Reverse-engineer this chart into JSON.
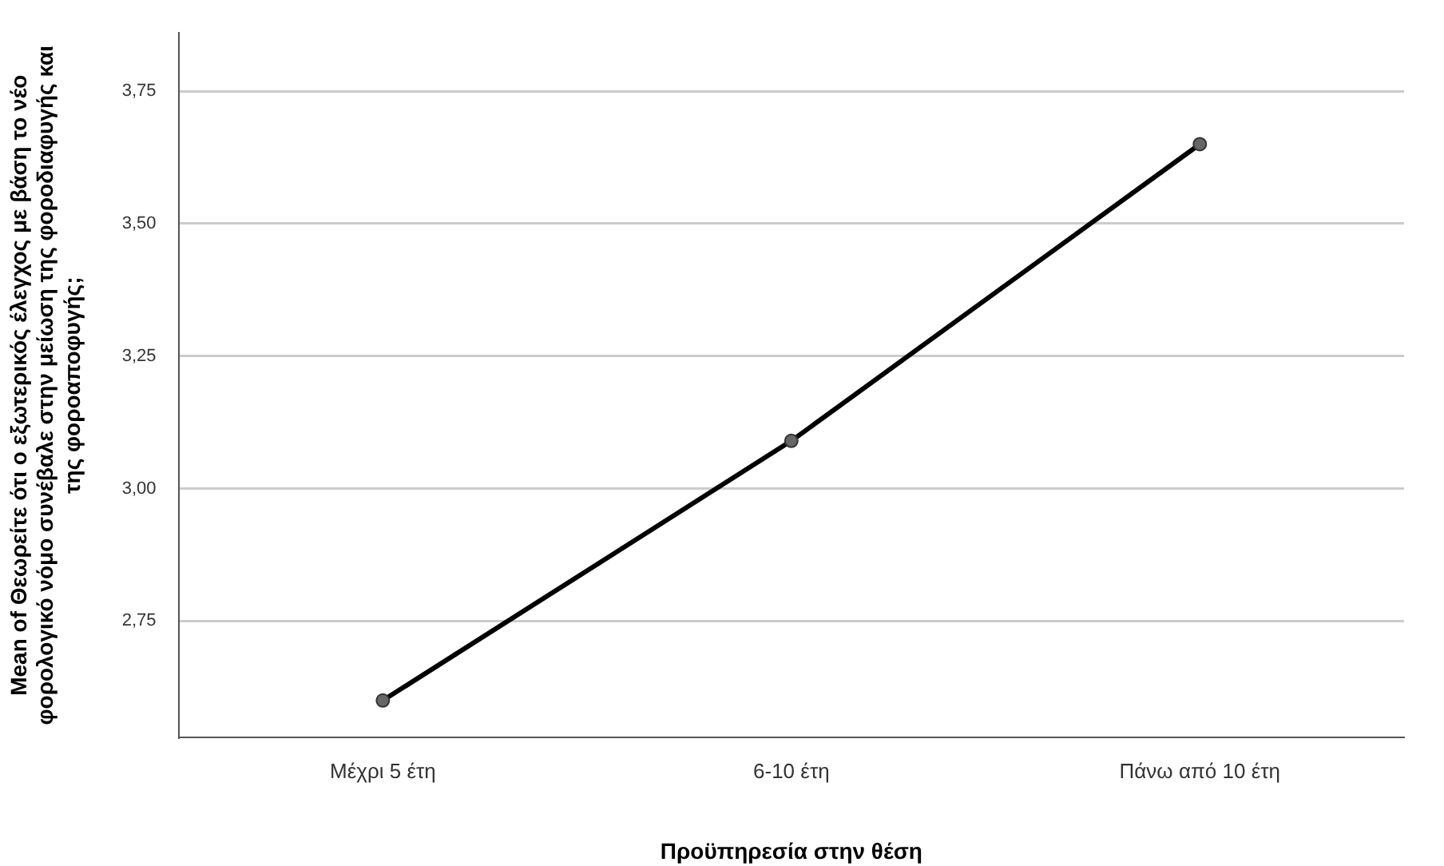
{
  "chart_data": {
    "type": "line",
    "xlabel": "Προϋπηρεσία στην θέση",
    "ylabel": "Mean of Θεωρείτε ότι ο εξωτερικός έλεγχος με βάση το νέο φορολογικό νόμο συνέβαλε στην μείωση της φοροδιαφυγής και της φοροαποφυγής;",
    "categories": [
      "Μέχρι 5 έτη",
      "6-10 έτη",
      "Πάνω από 10 έτη"
    ],
    "series": [
      {
        "color": "#000000",
        "values": [
          2.6,
          3.09,
          3.65
        ]
      }
    ],
    "ylim": [
      2.53,
      3.86
    ],
    "yticks": [
      {
        "value": 2.75,
        "label": "2,75"
      },
      {
        "value": 3.0,
        "label": "3,00"
      },
      {
        "value": 3.25,
        "label": "3,25"
      },
      {
        "value": 3.5,
        "label": "3,50"
      },
      {
        "value": 3.75,
        "label": "3,75"
      }
    ],
    "grid": "y",
    "legend": false,
    "marker": "circle",
    "line_style": "solid"
  }
}
